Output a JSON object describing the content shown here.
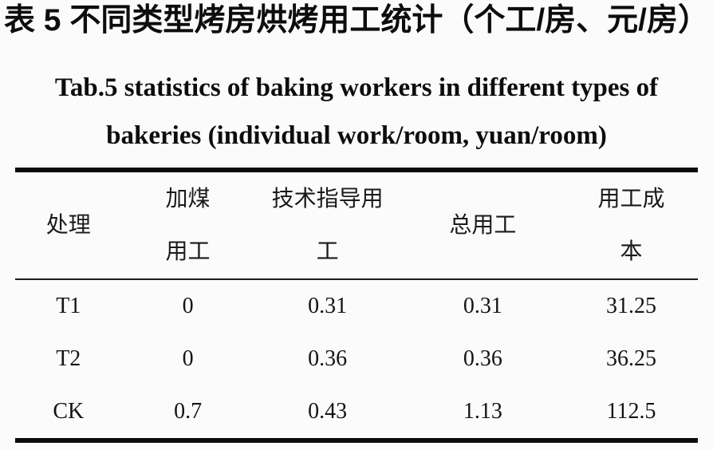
{
  "caption": {
    "title_cn": "表 5 不同类型烤房烘烤用工统计（个工/房、元/房）",
    "title_en_line1": "Tab.5 statistics of baking workers in different types of",
    "title_en_line2": "bakeries (individual work/room, yuan/room)"
  },
  "table": {
    "columns": [
      {
        "name": "treatment",
        "lines": [
          "处理"
        ]
      },
      {
        "name": "coal-adding-labor",
        "lines": [
          "加煤",
          "用工"
        ]
      },
      {
        "name": "technical-guidance-labor",
        "lines": [
          "技术指导用",
          "工"
        ]
      },
      {
        "name": "total-labor",
        "lines": [
          "总用工"
        ]
      },
      {
        "name": "labor-cost",
        "lines": [
          "用工成",
          "本"
        ]
      }
    ],
    "rows": [
      {
        "cells": [
          "T1",
          "0",
          "0.31",
          "0.31",
          "31.25"
        ]
      },
      {
        "cells": [
          "T2",
          "0",
          "0.36",
          "0.36",
          "36.25"
        ]
      },
      {
        "cells": [
          "CK",
          "0.7",
          "0.43",
          "1.13",
          "112.5"
        ]
      }
    ]
  },
  "colors": {
    "background": "#fbfbfb",
    "text": "#111111",
    "rule": "#0b0b0b"
  }
}
